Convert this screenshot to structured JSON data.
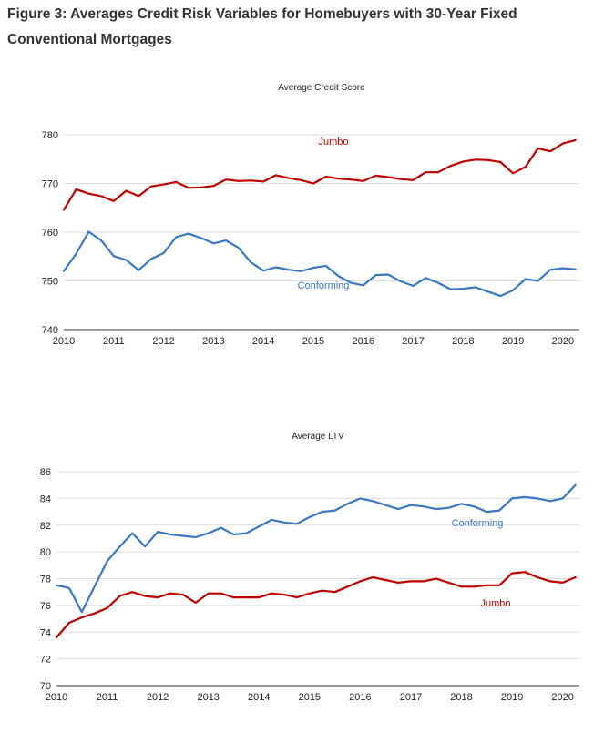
{
  "figure": {
    "title": "Figure 3: Averages Credit Risk Variables for Homebuyers with 30-Year Fixed Conventional Mortgages"
  },
  "colors": {
    "jumbo": "#c00000",
    "conforming": "#3a78c3",
    "grid": "#dddddd"
  },
  "chart_data": [
    {
      "type": "line",
      "title": "Average Credit Score",
      "xlabel": "",
      "ylabel": "",
      "xlim": [
        2010,
        2020.33
      ],
      "ylim": [
        740,
        780
      ],
      "x_ticks": [
        2010,
        2011,
        2012,
        2013,
        2014,
        2015,
        2016,
        2017,
        2018,
        2019,
        2020
      ],
      "y_ticks": [
        740,
        750,
        760,
        770,
        780
      ],
      "grid": true,
      "legend": "none",
      "x": [
        2010,
        2010.25,
        2010.5,
        2010.75,
        2011,
        2011.25,
        2011.5,
        2011.75,
        2012,
        2012.25,
        2012.5,
        2012.75,
        2013,
        2013.25,
        2013.5,
        2013.75,
        2014,
        2014.25,
        2014.5,
        2014.75,
        2015,
        2015.25,
        2015.5,
        2015.75,
        2016,
        2016.25,
        2016.5,
        2016.75,
        2017,
        2017.25,
        2017.5,
        2017.75,
        2018,
        2018.25,
        2018.5,
        2018.75,
        2019,
        2019.25,
        2019.5,
        2019.75,
        2020,
        2020.25
      ],
      "series": [
        {
          "name": "Jumbo",
          "color": "#c00000",
          "values": [
            764.6,
            768.8,
            767.9,
            767.4,
            766.4,
            768.5,
            767.4,
            769.4,
            769.8,
            770.3,
            769.1,
            769.2,
            769.5,
            770.8,
            770.5,
            770.6,
            770.4,
            771.7,
            771.1,
            770.7,
            770.0,
            771.4,
            771.0,
            770.8,
            770.5,
            771.6,
            771.3,
            770.9,
            770.7,
            772.3,
            772.3,
            773.6,
            774.5,
            774.9,
            774.8,
            774.4,
            772.1,
            773.4,
            777.2,
            776.6,
            778.2,
            778.9
          ]
        },
        {
          "name": "Conforming",
          "color": "#3a78c3",
          "values": [
            752.0,
            755.6,
            760.1,
            758.3,
            755.1,
            754.3,
            752.2,
            754.5,
            755.7,
            759.0,
            759.7,
            758.8,
            757.7,
            758.3,
            756.8,
            753.8,
            752.1,
            752.8,
            752.3,
            752.0,
            752.7,
            753.1,
            751.0,
            749.6,
            749.1,
            751.2,
            751.3,
            749.9,
            749.0,
            750.6,
            749.6,
            748.3,
            748.4,
            748.7,
            747.8,
            746.9,
            748.1,
            750.4,
            750.0,
            752.3,
            752.6,
            752.4
          ]
        }
      ]
    },
    {
      "type": "line",
      "title": "Average LTV",
      "xlabel": "",
      "ylabel": "",
      "xlim": [
        2010,
        2020.33
      ],
      "ylim": [
        70,
        86
      ],
      "x_ticks": [
        2010,
        2011,
        2012,
        2013,
        2014,
        2015,
        2016,
        2017,
        2018,
        2019,
        2020
      ],
      "y_ticks": [
        70,
        72,
        74,
        76,
        78,
        80,
        82,
        84,
        86
      ],
      "grid": true,
      "legend": "none",
      "x": [
        2010,
        2010.25,
        2010.5,
        2010.75,
        2011,
        2011.25,
        2011.5,
        2011.75,
        2012,
        2012.25,
        2012.5,
        2012.75,
        2013,
        2013.25,
        2013.5,
        2013.75,
        2014,
        2014.25,
        2014.5,
        2014.75,
        2015,
        2015.25,
        2015.5,
        2015.75,
        2016,
        2016.25,
        2016.5,
        2016.75,
        2017,
        2017.25,
        2017.5,
        2017.75,
        2018,
        2018.25,
        2018.5,
        2018.75,
        2019,
        2019.25,
        2019.5,
        2019.75,
        2020,
        2020.25
      ],
      "series": [
        {
          "name": "Conforming",
          "color": "#3a78c3",
          "values": [
            77.5,
            77.3,
            75.5,
            77.4,
            79.3,
            80.4,
            81.4,
            80.4,
            81.5,
            81.3,
            81.2,
            81.1,
            81.4,
            81.8,
            81.3,
            81.4,
            81.9,
            82.4,
            82.2,
            82.1,
            82.6,
            83.0,
            83.1,
            83.6,
            84.0,
            83.8,
            83.5,
            83.2,
            83.5,
            83.4,
            83.2,
            83.3,
            83.6,
            83.4,
            83.0,
            83.1,
            84.0,
            84.1,
            84.0,
            83.8,
            84.0,
            85.0
          ]
        },
        {
          "name": "Jumbo",
          "color": "#c00000",
          "values": [
            73.6,
            74.7,
            75.1,
            75.4,
            75.8,
            76.7,
            77.0,
            76.7,
            76.6,
            76.9,
            76.8,
            76.2,
            76.9,
            76.9,
            76.6,
            76.6,
            76.6,
            76.9,
            76.8,
            76.6,
            76.9,
            77.1,
            77.0,
            77.4,
            77.8,
            78.1,
            77.9,
            77.7,
            77.8,
            77.8,
            78.0,
            77.7,
            77.4,
            77.4,
            77.5,
            77.5,
            78.4,
            78.5,
            78.1,
            77.8,
            77.7,
            78.1
          ]
        }
      ]
    }
  ]
}
